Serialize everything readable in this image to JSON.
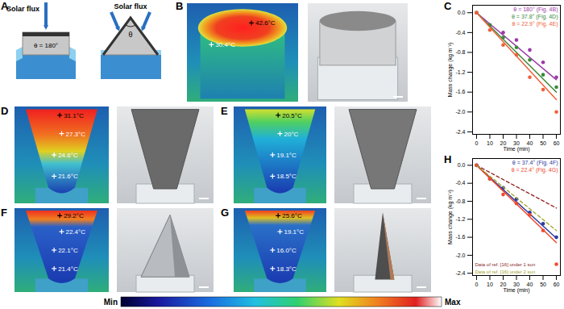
{
  "panels": {
    "A": {
      "label": "A",
      "left": {
        "flux_label": "Solar flux",
        "angle_label": "θ = 180°"
      },
      "right": {
        "flux_label": "Solar flux",
        "angle_label": "θ"
      }
    },
    "B": {
      "label": "B",
      "temperatures": [
        "42.6°C",
        "30.4°C"
      ]
    },
    "D": {
      "label": "D",
      "temperatures": [
        "31.1°C",
        "27.3°C",
        "24.6°C",
        "21.6°C"
      ]
    },
    "E": {
      "label": "E",
      "temperatures": [
        "20.5°C",
        "20°C",
        "19.1°C",
        "18.5°C"
      ]
    },
    "F": {
      "label": "F",
      "temperatures": [
        "29.2°C",
        "22.4°C",
        "22.1°C",
        "21.4°C"
      ]
    },
    "G": {
      "label": "G",
      "temperatures": [
        "25.6°C",
        "19.1°C",
        "16.0°C",
        "18.3°C"
      ]
    }
  },
  "colorbar": {
    "min_label": "Min",
    "max_label": "Max"
  },
  "chart_data": [
    {
      "panel": "C",
      "type": "scatter",
      "x_label": "Time (min)",
      "y_label": "Mass change (kg m⁻²)",
      "x": [
        0,
        10,
        20,
        30,
        40,
        50,
        60
      ],
      "xlim": [
        -3,
        63
      ],
      "xticks": [
        0,
        10,
        20,
        30,
        40,
        50,
        60
      ],
      "ylim": [
        -2.45,
        0.15
      ],
      "yticks": [
        {
          "value": 0,
          "label": "0.0"
        },
        -0.4,
        -0.8,
        -1.2,
        -1.6,
        {
          "value": -2,
          "label": "-2.0"
        },
        -2.4
      ],
      "legend": "top-right",
      "series": [
        {
          "name": "θ = 180° (Fig. 4B)",
          "color": "#9c3aa8",
          "marker": "circle",
          "values": [
            0,
            -0.25,
            -0.4,
            -0.55,
            -0.75,
            -1.0,
            -1.3
          ],
          "fit": {
            "x": [
              0,
              60
            ],
            "values": [
              0,
              -1.35
            ]
          }
        },
        {
          "name": "θ = 37.8° (Fig. 4D)",
          "color": "#3a8a3a",
          "marker": "circle",
          "values": [
            0,
            -0.25,
            -0.5,
            -0.7,
            -0.95,
            -1.25,
            -1.5
          ],
          "fit": {
            "x": [
              0,
              60
            ],
            "values": [
              0,
              -1.6
            ]
          }
        },
        {
          "name": "θ = 22.9° (Fig. 4E)",
          "color": "#f0603a",
          "marker": "circle",
          "values": [
            0,
            -0.35,
            -0.65,
            -0.85,
            -1.3,
            -1.55,
            -2.0
          ],
          "fit": {
            "x": [
              0,
              60
            ],
            "values": [
              0,
              -1.75
            ]
          }
        }
      ]
    },
    {
      "panel": "H",
      "type": "scatter",
      "x_label": "Time (min)",
      "y_label": "Mass change (kg m⁻²)",
      "x": [
        0,
        10,
        20,
        30,
        40,
        50,
        60
      ],
      "xlim": [
        -3,
        63
      ],
      "xticks": [
        0,
        10,
        20,
        30,
        40,
        50,
        60
      ],
      "ylim": [
        -2.45,
        0.15
      ],
      "yticks": [
        {
          "value": 0,
          "label": "0.0"
        },
        -0.4,
        -0.8,
        -1.2,
        -1.6,
        {
          "value": -2,
          "label": "-2.0"
        },
        -2.4
      ],
      "legend": "top-right",
      "series": [
        {
          "name": "θ = 37.4° (Fig. 4F)",
          "color": "#2f3da0",
          "marker": "circle",
          "values": [
            0,
            -0.3,
            -0.5,
            -0.75,
            -1.05,
            -1.3,
            -1.6
          ],
          "fit": {
            "x": [
              0,
              60
            ],
            "values": [
              0,
              -1.62
            ]
          }
        },
        {
          "name": "θ = 22.4° (Fig. 4G)",
          "color": "#ef4a2e",
          "marker": "circle",
          "values": [
            0,
            -0.3,
            -0.65,
            -0.85,
            -1.1,
            -1.45,
            -2.2
          ],
          "fit": {
            "x": [
              0,
              60
            ],
            "values": [
              0,
              -1.72
            ]
          }
        },
        {
          "name": "Data of ref. [16] under 1 sun",
          "color": "#8c1f1f",
          "type": "line",
          "line_style": "dashed",
          "x": [
            0,
            60
          ],
          "values": [
            0,
            -0.95
          ]
        },
        {
          "name": "Data of ref. [16] under 2 sun",
          "color": "#a3a32a",
          "type": "line",
          "line_style": "dashed",
          "x": [
            0,
            60
          ],
          "values": [
            0,
            -1.45
          ]
        }
      ]
    }
  ]
}
